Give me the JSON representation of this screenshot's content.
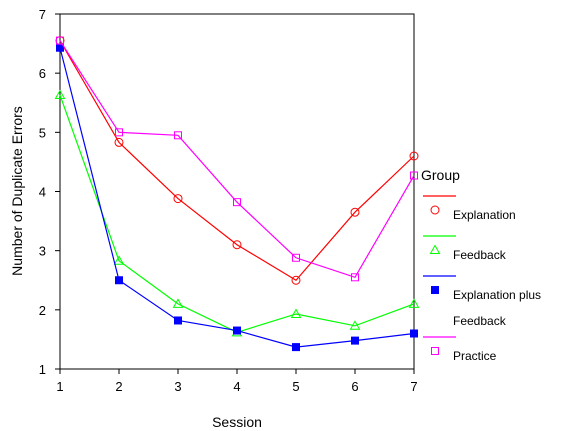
{
  "chart_data": {
    "type": "line",
    "title": "",
    "xlabel": "Session",
    "ylabel": "Number of Duplicate Errors",
    "x": [
      1,
      2,
      3,
      4,
      5,
      6,
      7
    ],
    "xlim": [
      1,
      7
    ],
    "ylim": [
      1,
      7
    ],
    "xticks": [
      "1",
      "2",
      "3",
      "4",
      "5",
      "6",
      "7"
    ],
    "yticks": [
      "1",
      "2",
      "3",
      "4",
      "5",
      "6",
      "7"
    ],
    "grid": false,
    "legend_title": "Group",
    "legend_position": "right",
    "series": [
      {
        "name": "Explanation",
        "color": "#ff0000",
        "marker": "circle-open",
        "values": [
          6.55,
          4.83,
          3.88,
          3.1,
          2.5,
          3.65,
          4.6
        ]
      },
      {
        "name": "Feedback",
        "color": "#00ff00",
        "marker": "triangle-open",
        "values": [
          5.63,
          2.83,
          2.1,
          1.62,
          1.93,
          1.73,
          2.1
        ]
      },
      {
        "name": "Explanation plus Feedback",
        "legend_lines": [
          "Explanation plus",
          "Feedback"
        ],
        "color": "#0000ff",
        "marker": "square-filled",
        "values": [
          6.43,
          2.5,
          1.82,
          1.65,
          1.37,
          1.48,
          1.6
        ]
      },
      {
        "name": "Practice",
        "color": "#ff00ff",
        "marker": "square-open",
        "values": [
          6.55,
          5.0,
          4.95,
          3.82,
          2.88,
          2.55,
          4.27
        ]
      }
    ]
  }
}
